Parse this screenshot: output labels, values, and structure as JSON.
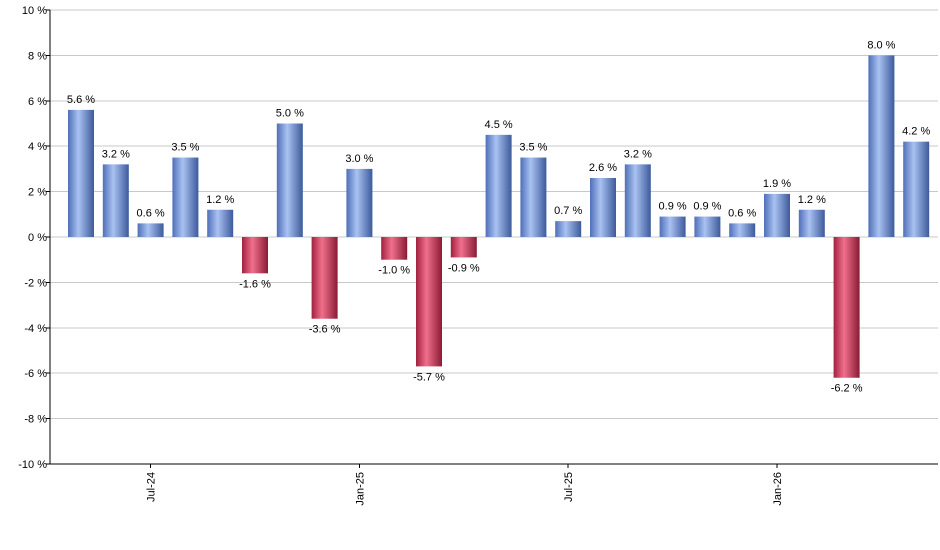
{
  "chart_data": {
    "type": "bar",
    "title": "",
    "xlabel": "",
    "ylabel": "",
    "ylim": [
      -10,
      10
    ],
    "y_ticks": [
      {
        "value": 10,
        "label": "10 %"
      },
      {
        "value": 8,
        "label": "8 %"
      },
      {
        "value": 6,
        "label": "6 %"
      },
      {
        "value": 4,
        "label": "4 %"
      },
      {
        "value": 2,
        "label": "2 %"
      },
      {
        "value": 0,
        "label": "0 %"
      },
      {
        "value": -2,
        "label": "-2 %"
      },
      {
        "value": -4,
        "label": "-4 %"
      },
      {
        "value": -6,
        "label": "-6 %"
      },
      {
        "value": -8,
        "label": "-8 %"
      },
      {
        "value": -10,
        "label": "-10 %"
      }
    ],
    "x_ticks": [
      {
        "index": 2,
        "label": "Jul-24"
      },
      {
        "index": 8,
        "label": "Jan-25"
      },
      {
        "index": 14,
        "label": "Jul-25"
      },
      {
        "index": 20,
        "label": "Jan-26"
      }
    ],
    "values": [
      5.6,
      3.2,
      0.6,
      3.5,
      1.2,
      -1.6,
      5.0,
      -3.6,
      3.0,
      -1.0,
      -5.7,
      -0.9,
      4.5,
      3.5,
      0.7,
      2.6,
      3.2,
      0.9,
      0.9,
      0.6,
      1.9,
      1.2,
      -6.2,
      8.0,
      4.2
    ],
    "value_labels": [
      "5.6 %",
      "3.2 %",
      "0.6 %",
      "3.5 %",
      "1.2 %",
      "-1.6 %",
      "5.0 %",
      "-3.6 %",
      "3.0 %",
      "-1.0 %",
      "-5.7 %",
      "-0.9 %",
      "4.5 %",
      "3.5 %",
      "0.7 %",
      "2.6 %",
      "3.2 %",
      "0.9 %",
      "0.9 %",
      "0.6 %",
      "1.9 %",
      "1.2 %",
      "-6.2 %",
      "8.0 %",
      "4.2 %"
    ],
    "grid": true,
    "colors": {
      "positive": "#7f9ee0",
      "negative": "#d8506e",
      "grid": "#c8c8c8",
      "axis": "#000000"
    }
  }
}
